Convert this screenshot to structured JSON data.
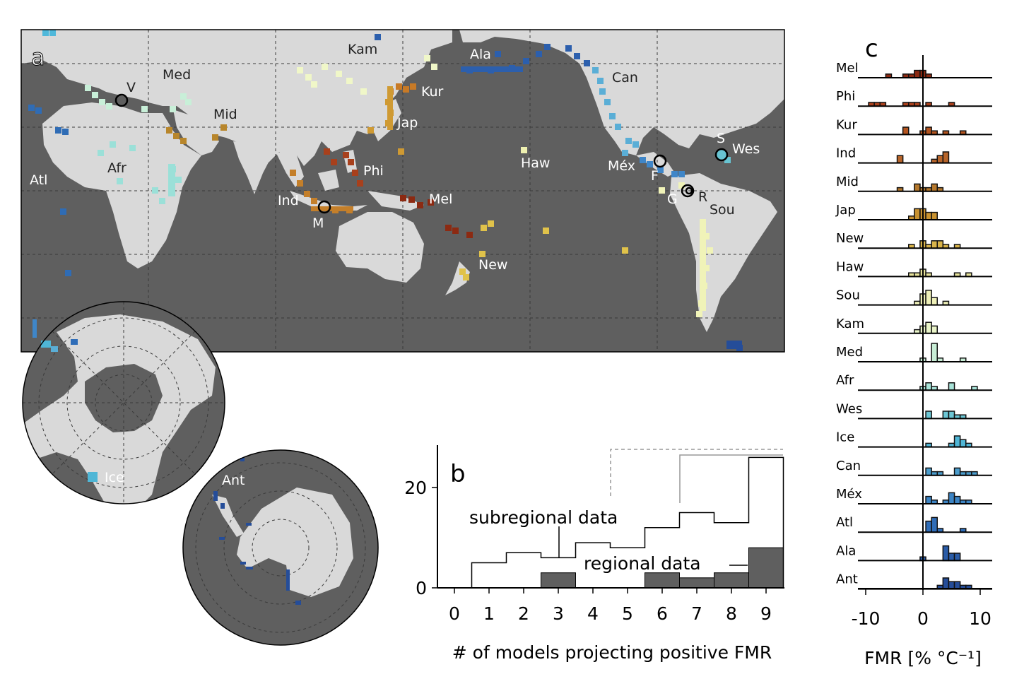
{
  "panel_labels": {
    "a": "a",
    "b": "b",
    "c": "c"
  },
  "colors": {
    "ocean": "#5f5f5f",
    "land": "#d9d9d9",
    "dark_bar": "#5f5f5f"
  },
  "map": {
    "region_labels": [
      {
        "name": "Kam",
        "color": "#f0f7c8"
      },
      {
        "name": "Ala",
        "color": "#2c5fad"
      },
      {
        "name": "Med",
        "color": "#c8efd8"
      },
      {
        "name": "Mid",
        "color": "#b8862b"
      },
      {
        "name": "Kur",
        "color": "#c87a26"
      },
      {
        "name": "Jap",
        "color": "#cf9a33"
      },
      {
        "name": "Can",
        "color": "#5aaed6"
      },
      {
        "name": "Phi",
        "color": "#a8401c"
      },
      {
        "name": "Mel",
        "color": "#8c2a12"
      },
      {
        "name": "Haw",
        "color": "#eef0b0"
      },
      {
        "name": "Méx",
        "color": "#3f86c8"
      },
      {
        "name": "Afr",
        "color": "#9be0d8"
      },
      {
        "name": "Atl",
        "color": "#2f6cb5"
      },
      {
        "name": "Ind",
        "color": "#c47f2a"
      },
      {
        "name": "New",
        "color": "#e0c24a"
      },
      {
        "name": "Sou",
        "color": "#f0f3b8"
      },
      {
        "name": "Wes",
        "color": "#68c4d2"
      },
      {
        "name": "Ice",
        "color": "#4fb8da"
      },
      {
        "name": "Ant",
        "color": "#254d99"
      }
    ],
    "sites": [
      "V",
      "M",
      "F",
      "S",
      "G",
      "R"
    ]
  },
  "chart_data": [
    {
      "type": "bar",
      "panel": "b",
      "xlabel": "# of models projecting positive FMR",
      "ylabel": "",
      "categories": [
        0,
        1,
        2,
        3,
        4,
        5,
        6,
        7,
        8,
        9
      ],
      "ylim": [
        0,
        28
      ],
      "yticks": [
        0,
        20
      ],
      "series": [
        {
          "name": "subregional data",
          "values": [
            0,
            5,
            7,
            6,
            9,
            8,
            12,
            15,
            13,
            26
          ]
        },
        {
          "name": "regional data",
          "values": [
            0,
            0,
            0,
            3,
            0,
            0,
            3,
            2,
            3,
            8
          ]
        }
      ],
      "annotations": [
        "subregional data",
        "regional data"
      ]
    },
    {
      "type": "histogram",
      "panel": "c",
      "xlabel": "FMR [% °C⁻¹]",
      "xticks": [
        -10,
        0,
        10
      ],
      "xlim": [
        -12,
        12
      ],
      "regions": [
        {
          "name": "Mel",
          "color": "#8c2a12",
          "bins": [
            {
              "x": -6,
              "h": 1
            },
            {
              "x": -3,
              "h": 1
            },
            {
              "x": -2,
              "h": 1
            },
            {
              "x": -1,
              "h": 2
            },
            {
              "x": 0,
              "h": 2
            },
            {
              "x": 1,
              "h": 1
            }
          ]
        },
        {
          "name": "Phi",
          "color": "#a8401c",
          "bins": [
            {
              "x": -9,
              "h": 1
            },
            {
              "x": -8,
              "h": 1
            },
            {
              "x": -7,
              "h": 1
            },
            {
              "x": -3,
              "h": 1
            },
            {
              "x": -2,
              "h": 1
            },
            {
              "x": -1,
              "h": 1
            },
            {
              "x": 1,
              "h": 1
            },
            {
              "x": 5,
              "h": 1
            }
          ]
        },
        {
          "name": "Kur",
          "color": "#b3541f",
          "bins": [
            {
              "x": -3,
              "h": 2
            },
            {
              "x": 0,
              "h": 1
            },
            {
              "x": 1,
              "h": 2
            },
            {
              "x": 2,
              "h": 1
            },
            {
              "x": 4,
              "h": 1
            },
            {
              "x": 7,
              "h": 1
            }
          ]
        },
        {
          "name": "Ind",
          "color": "#b8652a",
          "bins": [
            {
              "x": -4,
              "h": 2
            },
            {
              "x": 2,
              "h": 1
            },
            {
              "x": 3,
              "h": 2
            },
            {
              "x": 4,
              "h": 3
            }
          ]
        },
        {
          "name": "Mid",
          "color": "#b5782c",
          "bins": [
            {
              "x": -4,
              "h": 1
            },
            {
              "x": -1,
              "h": 2
            },
            {
              "x": 0,
              "h": 1
            },
            {
              "x": 1,
              "h": 1
            },
            {
              "x": 2,
              "h": 2
            },
            {
              "x": 3,
              "h": 1
            }
          ]
        },
        {
          "name": "Jap",
          "color": "#c99230",
          "bins": [
            {
              "x": -2,
              "h": 1
            },
            {
              "x": -1,
              "h": 3
            },
            {
              "x": 0,
              "h": 3
            },
            {
              "x": 1,
              "h": 2
            },
            {
              "x": 2,
              "h": 2
            }
          ]
        },
        {
          "name": "New",
          "color": "#d9b44a",
          "bins": [
            {
              "x": -2,
              "h": 1
            },
            {
              "x": 0,
              "h": 2
            },
            {
              "x": 1,
              "h": 1
            },
            {
              "x": 2,
              "h": 2
            },
            {
              "x": 3,
              "h": 2
            },
            {
              "x": 4,
              "h": 1
            },
            {
              "x": 6,
              "h": 1
            }
          ]
        },
        {
          "name": "Haw",
          "color": "#e6e29a",
          "bins": [
            {
              "x": -2,
              "h": 1
            },
            {
              "x": -1,
              "h": 1
            },
            {
              "x": 0,
              "h": 2
            },
            {
              "x": 1,
              "h": 1
            },
            {
              "x": 6,
              "h": 1
            },
            {
              "x": 8,
              "h": 1
            }
          ]
        },
        {
          "name": "Sou",
          "color": "#eef0b8",
          "bins": [
            {
              "x": -1,
              "h": 1
            },
            {
              "x": 0,
              "h": 3
            },
            {
              "x": 1,
              "h": 4
            },
            {
              "x": 2,
              "h": 2
            },
            {
              "x": 4,
              "h": 1
            }
          ]
        },
        {
          "name": "Kam",
          "color": "#e9f4c8",
          "bins": [
            {
              "x": -1,
              "h": 1
            },
            {
              "x": 0,
              "h": 2
            },
            {
              "x": 1,
              "h": 3
            },
            {
              "x": 2,
              "h": 2
            }
          ]
        },
        {
          "name": "Med",
          "color": "#c8eed6",
          "bins": [
            {
              "x": 0,
              "h": 1
            },
            {
              "x": 2,
              "h": 5
            },
            {
              "x": 3,
              "h": 1
            },
            {
              "x": 7,
              "h": 1
            }
          ]
        },
        {
          "name": "Afr",
          "color": "#a8e3d8",
          "bins": [
            {
              "x": 0,
              "h": 1
            },
            {
              "x": 1,
              "h": 2
            },
            {
              "x": 2,
              "h": 1
            },
            {
              "x": 5,
              "h": 2
            },
            {
              "x": 9,
              "h": 1
            }
          ]
        },
        {
          "name": "Wes",
          "color": "#6cc6d4",
          "bins": [
            {
              "x": 1,
              "h": 2
            },
            {
              "x": 4,
              "h": 2
            },
            {
              "x": 5,
              "h": 2
            },
            {
              "x": 6,
              "h": 1
            },
            {
              "x": 7,
              "h": 1
            }
          ]
        },
        {
          "name": "Ice",
          "color": "#4fb6d6",
          "bins": [
            {
              "x": 1,
              "h": 1
            },
            {
              "x": 5,
              "h": 1
            },
            {
              "x": 6,
              "h": 3
            },
            {
              "x": 7,
              "h": 2
            },
            {
              "x": 8,
              "h": 1
            }
          ]
        },
        {
          "name": "Can",
          "color": "#4a9ccc",
          "bins": [
            {
              "x": 1,
              "h": 2
            },
            {
              "x": 2,
              "h": 1
            },
            {
              "x": 3,
              "h": 1
            },
            {
              "x": 6,
              "h": 2
            },
            {
              "x": 7,
              "h": 1
            },
            {
              "x": 8,
              "h": 1
            },
            {
              "x": 9,
              "h": 1
            }
          ]
        },
        {
          "name": "Méx",
          "color": "#3c84c4",
          "bins": [
            {
              "x": 1,
              "h": 2
            },
            {
              "x": 2,
              "h": 1
            },
            {
              "x": 4,
              "h": 1
            },
            {
              "x": 5,
              "h": 3
            },
            {
              "x": 6,
              "h": 2
            },
            {
              "x": 7,
              "h": 1
            },
            {
              "x": 8,
              "h": 1
            }
          ]
        },
        {
          "name": "Atl",
          "color": "#2f6db8",
          "bins": [
            {
              "x": 1,
              "h": 3
            },
            {
              "x": 2,
              "h": 4
            },
            {
              "x": 3,
              "h": 1
            },
            {
              "x": 7,
              "h": 1
            }
          ]
        },
        {
          "name": "Ala",
          "color": "#2a5ca8",
          "bins": [
            {
              "x": 0,
              "h": 1
            },
            {
              "x": 4,
              "h": 4
            },
            {
              "x": 5,
              "h": 2
            },
            {
              "x": 6,
              "h": 2
            }
          ]
        },
        {
          "name": "Ant",
          "color": "#254d99",
          "bins": [
            {
              "x": 3,
              "h": 1
            },
            {
              "x": 4,
              "h": 3
            },
            {
              "x": 5,
              "h": 2
            },
            {
              "x": 6,
              "h": 2
            },
            {
              "x": 7,
              "h": 1
            },
            {
              "x": 8,
              "h": 1
            }
          ]
        }
      ]
    }
  ]
}
